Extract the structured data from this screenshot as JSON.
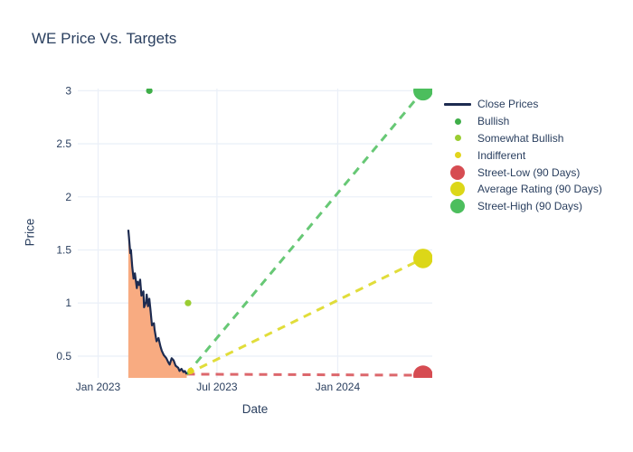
{
  "title": "WE Price Vs. Targets",
  "colors": {
    "text": "#2a3f5f",
    "grid": "#ebf0f8",
    "close_line": "#1d2b50",
    "close_fill": "#f8ab81",
    "bullish": "#3fae49",
    "somewhat_bullish": "#9acd32",
    "indifferent": "#e2d51d",
    "street_low": "#d64c52",
    "average_rating": "#dcd718",
    "street_high": "#4cbe5d"
  },
  "legend": {
    "items": [
      {
        "label": "Close Prices",
        "type": "line",
        "color": "#1d2b50"
      },
      {
        "label": "Bullish",
        "type": "dot",
        "color": "#3fae49"
      },
      {
        "label": "Somewhat Bullish",
        "type": "dot",
        "color": "#9acd32"
      },
      {
        "label": "Indifferent",
        "type": "dot",
        "color": "#e2d51d"
      },
      {
        "label": "Street-Low (90 Days)",
        "type": "bubble",
        "color": "#d64c52"
      },
      {
        "label": "Average Rating (90 Days)",
        "type": "bubble",
        "color": "#dcd718"
      },
      {
        "label": "Street-High (90 Days)",
        "type": "bubble",
        "color": "#4cbe5d"
      }
    ]
  },
  "chart_data": {
    "type": "line",
    "title": "WE Price Vs. Targets",
    "xlabel": "Date",
    "ylabel": "Price",
    "x_range": [
      "2022-12-01",
      "2024-05-24"
    ],
    "y_range": [
      0.295,
      3.02
    ],
    "x_ticks": [
      {
        "label": "Jan 2023",
        "date": "2023-01-01"
      },
      {
        "label": "Jul 2023",
        "date": "2023-07-01"
      },
      {
        "label": "Jan 2024",
        "date": "2024-01-01"
      }
    ],
    "y_ticks": [
      0.5,
      1,
      1.5,
      2,
      2.5,
      3
    ],
    "grid": true,
    "legend_position": "right",
    "close": {
      "name": "Close Prices",
      "color": "#1d2b50",
      "fill": "#f8ab81",
      "dates": [
        "2023-02-16",
        "2023-02-17",
        "2023-02-19",
        "2023-02-20",
        "2023-02-22",
        "2023-02-24",
        "2023-02-26",
        "2023-03-01",
        "2023-03-02",
        "2023-03-04",
        "2023-03-06",
        "2023-03-08",
        "2023-03-11",
        "2023-03-12",
        "2023-03-15",
        "2023-03-16",
        "2023-03-18",
        "2023-03-20",
        "2023-03-22",
        "2023-03-24",
        "2023-03-27",
        "2023-03-28",
        "2023-03-31",
        "2023-04-03",
        "2023-04-06",
        "2023-04-08",
        "2023-04-11",
        "2023-04-15",
        "2023-04-18",
        "2023-04-20",
        "2023-04-23",
        "2023-04-26",
        "2023-04-29",
        "2023-05-03",
        "2023-05-05",
        "2023-05-08",
        "2023-05-11",
        "2023-05-13",
        "2023-05-16"
      ],
      "values": [
        1.69,
        1.62,
        1.47,
        1.5,
        1.34,
        1.23,
        1.28,
        1.14,
        1.2,
        1.17,
        1.22,
        1.07,
        1.11,
        0.96,
        1.01,
        1.08,
        0.97,
        1.04,
        0.92,
        0.79,
        0.81,
        0.75,
        0.64,
        0.67,
        0.59,
        0.55,
        0.51,
        0.48,
        0.44,
        0.42,
        0.48,
        0.46,
        0.41,
        0.39,
        0.36,
        0.38,
        0.35,
        0.36,
        0.33
      ]
    },
    "ratings": [
      {
        "name": "Bullish",
        "color": "#3fae49",
        "points": [
          {
            "date": "2023-03-20",
            "value": 3.0
          }
        ]
      },
      {
        "name": "Somewhat Bullish",
        "color": "#9acd32",
        "points": [
          {
            "date": "2023-05-18",
            "value": 1.0
          }
        ]
      },
      {
        "name": "Indifferent",
        "color": "#e2d51d",
        "points": [
          {
            "date": "2023-05-22",
            "value": 0.36
          }
        ]
      }
    ],
    "trend_start": {
      "date": "2023-05-16",
      "value": 0.33
    },
    "targets": [
      {
        "name": "Street-Low (90 Days)",
        "color": "#d64c52",
        "date": "2024-05-10",
        "value": 0.32
      },
      {
        "name": "Average Rating (90 Days)",
        "color": "#dcd718",
        "date": "2024-05-10",
        "value": 1.42
      },
      {
        "name": "Street-High (90 Days)",
        "color": "#4cbe5d",
        "date": "2024-05-10",
        "value": 3.0
      }
    ]
  }
}
